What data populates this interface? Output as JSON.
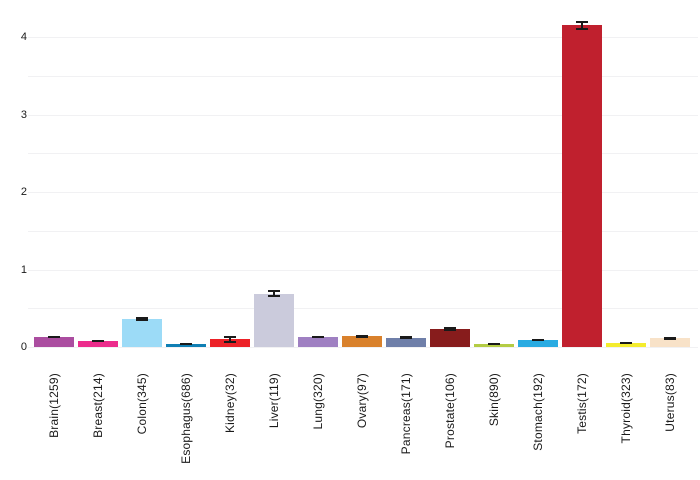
{
  "chart_data": {
    "type": "bar",
    "title": "",
    "xlabel": "",
    "ylabel": "",
    "categories": [
      "Brain(1259)",
      "Breast(214)",
      "Colon(345)",
      "Esophagus(686)",
      "Kidney(32)",
      "Liver(119)",
      "Lung(320)",
      "Ovary(97)",
      "Pancreas(171)",
      "Prostate(106)",
      "Skin(890)",
      "Stomach(192)",
      "Testis(172)",
      "Thyroid(323)",
      "Uterus(83)"
    ],
    "values": [
      0.13,
      0.08,
      0.36,
      0.04,
      0.1,
      0.69,
      0.13,
      0.14,
      0.12,
      0.23,
      0.04,
      0.09,
      4.15,
      0.05,
      0.11
    ],
    "errors": [
      0.012,
      0.01,
      0.022,
      0.01,
      0.045,
      0.04,
      0.012,
      0.02,
      0.02,
      0.022,
      0.01,
      0.012,
      0.06,
      0.012,
      0.02
    ],
    "bar_colors": [
      "#ab4da0",
      "#ec2c8c",
      "#9cdbf7",
      "#0f7fb4",
      "#ec2127",
      "#cbcbdc",
      "#9f80c2",
      "#d9812c",
      "#6f7fa9",
      "#871c1c",
      "#b4cc44",
      "#29abe2",
      "#c0202e",
      "#f4ec2e",
      "#f8e2c8"
    ],
    "yticks": [
      0,
      1,
      2,
      3,
      4
    ],
    "ylim": [
      0,
      4.35
    ],
    "gridline_step": 0.5,
    "grid": true,
    "legend": "none",
    "error_bar_color": "#1a1a1a",
    "gridline_color": "#f1f1f3",
    "background_color": "#ffffff",
    "tick_label_color": "#1a1a1a"
  }
}
